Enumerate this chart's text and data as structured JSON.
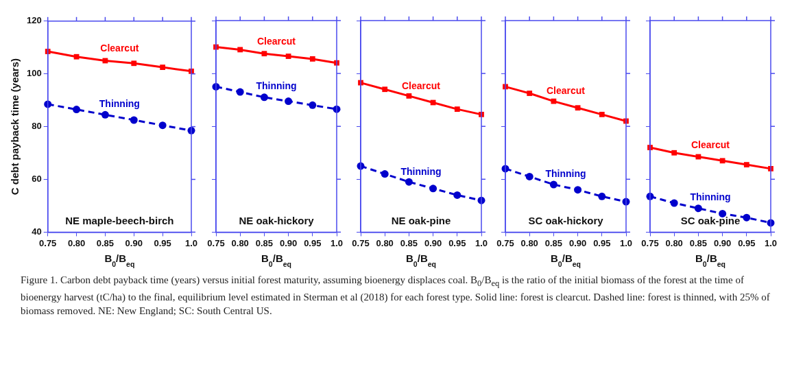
{
  "chart_data": [
    {
      "type": "line",
      "ylabel": "C debt payback time (years)",
      "xlabel": "B$_{0}$/B$_{eq}$",
      "annotations": [
        "NE maple-beech-birch"
      ],
      "x": [
        0.75,
        0.8,
        0.85,
        0.9,
        0.95,
        1.0
      ],
      "xlim": [
        0.75,
        1.0
      ],
      "xticks": [
        0.75,
        {
          "value": 0.8,
          "label": "0.80"
        },
        0.85,
        {
          "value": 0.9,
          "label": "0.90"
        },
        0.95,
        {
          "value": 1.0,
          "label": "1.0"
        }
      ],
      "ylim": [
        40,
        120
      ],
      "yticks": [
        40,
        60,
        80,
        100,
        120
      ],
      "grid": false,
      "legend": false,
      "series": [
        {
          "name": "Clearcut",
          "color": "#ff0000",
          "marker": "square",
          "line_style": "solid",
          "values": [
            108.5,
            106.5,
            105,
            104,
            102.5,
            101
          ]
        },
        {
          "name": "Thinning",
          "color": "#0000cc",
          "marker": "circle",
          "line_style": "dashed",
          "values": [
            88.5,
            86.5,
            84.5,
            82.5,
            80.5,
            78.5
          ]
        }
      ]
    },
    {
      "type": "line",
      "xlabel": "B$_{0}$/B$_{eq}$",
      "annotations": [
        "NE oak-hickory"
      ],
      "x": [
        0.75,
        0.8,
        0.85,
        0.9,
        0.95,
        1.0
      ],
      "xlim": [
        0.75,
        1.0
      ],
      "xticks": [
        0.75,
        {
          "value": 0.8,
          "label": "0.80"
        },
        0.85,
        {
          "value": 0.9,
          "label": "0.90"
        },
        0.95,
        {
          "value": 1.0,
          "label": "1.0"
        }
      ],
      "ylim": [
        40,
        120
      ],
      "yticks": [
        40,
        60,
        80,
        100,
        120
      ],
      "tick_labels": "x",
      "grid": false,
      "legend": false,
      "series": [
        {
          "name": "Clearcut",
          "color": "#ff0000",
          "marker": "square",
          "line_style": "solid",
          "values": [
            110,
            109,
            107.5,
            106.5,
            105.5,
            104
          ]
        },
        {
          "name": "Thinning",
          "color": "#0000cc",
          "marker": "circle",
          "line_style": "dashed",
          "values": [
            95,
            93,
            91,
            89.5,
            88,
            86.5
          ]
        }
      ]
    },
    {
      "type": "line",
      "xlabel": "B$_{0}$/B$_{eq}$",
      "annotations": [
        "NE oak-pine"
      ],
      "x": [
        0.75,
        0.8,
        0.85,
        0.9,
        0.95,
        1.0
      ],
      "xlim": [
        0.75,
        1.0
      ],
      "xticks": [
        0.75,
        {
          "value": 0.8,
          "label": "0.80"
        },
        0.85,
        {
          "value": 0.9,
          "label": "0.90"
        },
        0.95,
        {
          "value": 1.0,
          "label": "1.0"
        }
      ],
      "ylim": [
        40,
        120
      ],
      "yticks": [
        40,
        60,
        80,
        100,
        120
      ],
      "tick_labels": "x",
      "grid": false,
      "legend": false,
      "series": [
        {
          "name": "Clearcut",
          "color": "#ff0000",
          "marker": "square",
          "line_style": "solid",
          "values": [
            96.5,
            94,
            91.5,
            89,
            86.5,
            84.5
          ]
        },
        {
          "name": "Thinning",
          "color": "#0000cc",
          "marker": "circle",
          "line_style": "dashed",
          "values": [
            65,
            62,
            59,
            56.5,
            54,
            52
          ]
        }
      ]
    },
    {
      "type": "line",
      "xlabel": "B$_{0}$/B$_{eq}$",
      "annotations": [
        "SC oak-hickory"
      ],
      "x": [
        0.75,
        0.8,
        0.85,
        0.9,
        0.95,
        1.0
      ],
      "xlim": [
        0.75,
        1.0
      ],
      "xticks": [
        0.75,
        {
          "value": 0.8,
          "label": "0.80"
        },
        0.85,
        {
          "value": 0.9,
          "label": "0.90"
        },
        0.95,
        {
          "value": 1.0,
          "label": "1.0"
        }
      ],
      "ylim": [
        40,
        120
      ],
      "yticks": [
        40,
        60,
        80,
        100,
        120
      ],
      "tick_labels": "x",
      "grid": false,
      "legend": false,
      "series": [
        {
          "name": "Clearcut",
          "color": "#ff0000",
          "marker": "square",
          "line_style": "solid",
          "values": [
            95,
            92.5,
            89.5,
            87,
            84.5,
            82
          ]
        },
        {
          "name": "Thinning",
          "color": "#0000cc",
          "marker": "circle",
          "line_style": "dashed",
          "values": [
            64,
            61,
            58,
            56,
            53.5,
            51.5
          ]
        }
      ]
    },
    {
      "type": "line",
      "xlabel": "B$_{0}$/B$_{eq}$",
      "annotations": [
        "SC oak-pine"
      ],
      "x": [
        0.75,
        0.8,
        0.85,
        0.9,
        0.95,
        1.0
      ],
      "xlim": [
        0.75,
        1.0
      ],
      "xticks": [
        0.75,
        {
          "value": 0.8,
          "label": "0.80"
        },
        0.85,
        {
          "value": 0.9,
          "label": "0.90"
        },
        0.95,
        {
          "value": 1.0,
          "label": "1.0"
        }
      ],
      "ylim": [
        40,
        120
      ],
      "yticks": [
        40,
        60,
        80,
        100,
        120
      ],
      "tick_labels": "x",
      "grid": false,
      "legend": false,
      "series": [
        {
          "name": "Clearcut",
          "color": "#ff0000",
          "marker": "square",
          "line_style": "solid",
          "values": [
            72,
            70,
            68.5,
            67,
            65.5,
            64
          ]
        },
        {
          "name": "Thinning",
          "color": "#0000cc",
          "marker": "circle",
          "line_style": "dashed",
          "values": [
            53.5,
            51,
            49,
            47,
            45.5,
            43.5
          ]
        }
      ]
    },
    {
      "type": "other",
      "annotations": [
        "Figure 1. Carbon debt payback time (years) versus initial forest maturity, assuming bioenergy displaces coal. B$_{0}$/B$_{eq}$ is the ratio of the initial biomass of the forest at the time of bioenergy harvest (tC/ha) to the final, equilibrium level estimated in Sterman et al (2018) for each forest type. Solid line: forest is clearcut. Dashed line: forest is thinned, with 25% of biomass removed. NE: New England; SC: South Central US."
      ]
    }
  ]
}
